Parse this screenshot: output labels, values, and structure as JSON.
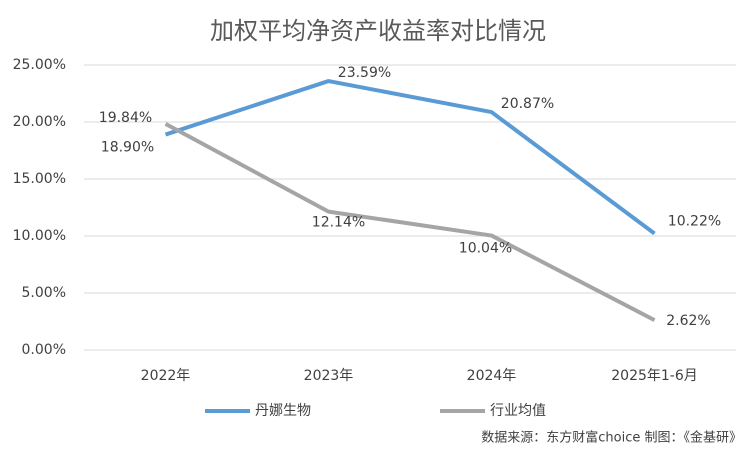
{
  "chart_data": {
    "type": "line",
    "title": "加权平均净资产收益率对比情况",
    "categories": [
      "2022年",
      "2023年",
      "2024年",
      "2025年1-6月"
    ],
    "series": [
      {
        "name": "丹娜生物",
        "color": "#5b9bd5",
        "values": [
          18.9,
          23.59,
          20.87,
          10.22
        ],
        "value_labels": [
          "18.90%",
          "23.59%",
          "20.87%",
          "10.22%"
        ]
      },
      {
        "name": "行业均值",
        "color": "#a5a5a5",
        "values": [
          19.84,
          12.14,
          10.04,
          2.62
        ],
        "value_labels": [
          "19.84%",
          "12.14%",
          "10.04%",
          "2.62%"
        ]
      }
    ],
    "ylim": [
      0,
      25
    ],
    "yticks": [
      {
        "value": 0,
        "label": "0.00%"
      },
      {
        "value": 5,
        "label": "5.00%"
      },
      {
        "value": 10,
        "label": "10.00%"
      },
      {
        "value": 15,
        "label": "15.00%"
      },
      {
        "value": 20,
        "label": "20.00%"
      },
      {
        "value": 25,
        "label": "25.00%"
      }
    ],
    "grid": true,
    "legend": "bottom",
    "source": "数据来源：东方财富choice  制图：《金基研》"
  }
}
